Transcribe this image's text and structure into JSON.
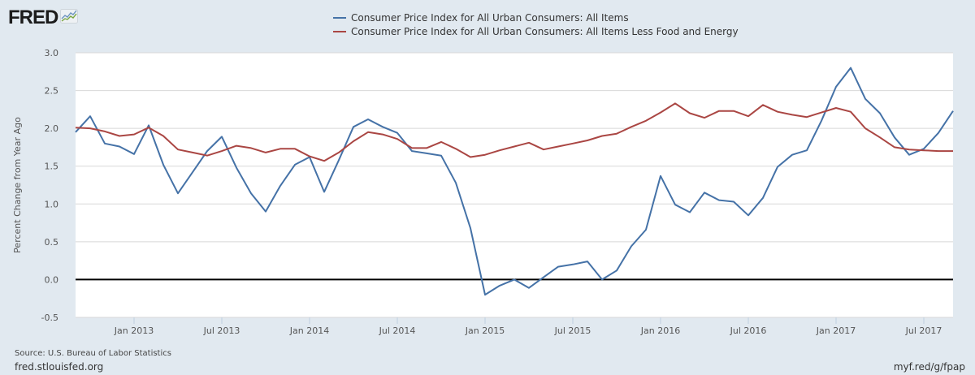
{
  "header": {
    "logo_text": "FRED",
    "logo_icon": "line-graph-icon"
  },
  "footer": {
    "source": "Source: U.S. Bureau of Labor Statistics",
    "site": "fred.stlouisfed.org",
    "short_link": "myf.red/g/fpap"
  },
  "colors": {
    "background": "#e1e9f0",
    "plot_background": "#ffffff",
    "series_1": "#4572a7",
    "series_2": "#aa4643",
    "zero_line": "#000000",
    "gridline": "#d8d8d8"
  },
  "chart_data": {
    "type": "line",
    "title": "",
    "xlabel": "",
    "ylabel": "Percent Change from Year Ago",
    "ylim": [
      -0.5,
      3.0
    ],
    "yticks": [
      "3.0",
      "2.5",
      "2.0",
      "1.5",
      "1.0",
      "0.5",
      "0.0",
      "-0.5"
    ],
    "ytick_values": [
      3.0,
      2.5,
      2.0,
      1.5,
      1.0,
      0.5,
      0.0,
      -0.5
    ],
    "grid": true,
    "legend_position": "top-center",
    "x_start": "2012-09",
    "x_end": "2017-09",
    "frequency": "monthly",
    "xticks": [
      {
        "label": "Jan 2013",
        "index": 4
      },
      {
        "label": "Jul 2013",
        "index": 10
      },
      {
        "label": "Jan 2014",
        "index": 16
      },
      {
        "label": "Jul 2014",
        "index": 22
      },
      {
        "label": "Jan 2015",
        "index": 28
      },
      {
        "label": "Jul 2015",
        "index": 34
      },
      {
        "label": "Jan 2016",
        "index": 40
      },
      {
        "label": "Jul 2016",
        "index": 46
      },
      {
        "label": "Jan 2017",
        "index": 52
      },
      {
        "label": "Jul 2017",
        "index": 58
      }
    ],
    "series": [
      {
        "name": "Consumer Price Index for All Urban Consumers: All Items",
        "color": "#4572a7",
        "values": [
          1.95,
          2.16,
          1.8,
          1.76,
          1.66,
          2.04,
          1.52,
          1.14,
          1.42,
          1.7,
          1.89,
          1.48,
          1.14,
          0.9,
          1.24,
          1.52,
          1.62,
          1.16,
          1.58,
          2.02,
          2.12,
          2.02,
          1.94,
          1.7,
          1.67,
          1.64,
          1.28,
          0.68,
          -0.2,
          -0.08,
          0.0,
          -0.11,
          0.03,
          0.17,
          0.2,
          0.24,
          0.0,
          0.12,
          0.44,
          0.66,
          1.37,
          0.99,
          0.89,
          1.15,
          1.05,
          1.03,
          0.85,
          1.08,
          1.49,
          1.65,
          1.71,
          2.1,
          2.55,
          2.8,
          2.39,
          2.2,
          1.88,
          1.65,
          1.73,
          1.94,
          2.23
        ]
      },
      {
        "name": "Consumer Price Index for All Urban Consumers: All Items Less Food and Energy",
        "color": "#aa4643",
        "values": [
          2.01,
          2.0,
          1.96,
          1.9,
          1.92,
          2.01,
          1.9,
          1.72,
          1.68,
          1.64,
          1.7,
          1.77,
          1.74,
          1.68,
          1.73,
          1.73,
          1.63,
          1.57,
          1.68,
          1.83,
          1.95,
          1.92,
          1.86,
          1.74,
          1.74,
          1.82,
          1.73,
          1.62,
          1.65,
          1.71,
          1.76,
          1.81,
          1.72,
          1.76,
          1.8,
          1.84,
          1.9,
          1.93,
          2.02,
          2.1,
          2.21,
          2.33,
          2.2,
          2.14,
          2.23,
          2.23,
          2.16,
          2.31,
          2.22,
          2.18,
          2.15,
          2.21,
          2.27,
          2.22,
          2.0,
          1.88,
          1.75,
          1.72,
          1.71,
          1.7,
          1.7
        ]
      }
    ]
  }
}
